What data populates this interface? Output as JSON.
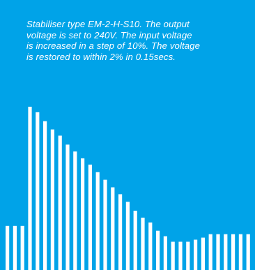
{
  "caption_lines": [
    "Stabiliser type EM-2-H-S10.  The output",
    "voltage is set to 240V.  The input voltage",
    "is increased in a step of 10%.  The voltage",
    "is restored to within 2% in 0.15secs."
  ],
  "colors": {
    "background": "#00a3e8",
    "bars": "#ffffff",
    "text": "#ffffff"
  },
  "chart_data": {
    "type": "bar",
    "title": "",
    "xlabel": "",
    "ylabel": "",
    "ylim": [
      0,
      240
    ],
    "grid": false,
    "legend": "none",
    "values": [
      64,
      64,
      64,
      237,
      229,
      216,
      204,
      195,
      182,
      172,
      162,
      153,
      142,
      131,
      120,
      110,
      99,
      86,
      76,
      69,
      57,
      49,
      41,
      41,
      41,
      44,
      47,
      52,
      52,
      52,
      52,
      52,
      52
    ]
  }
}
